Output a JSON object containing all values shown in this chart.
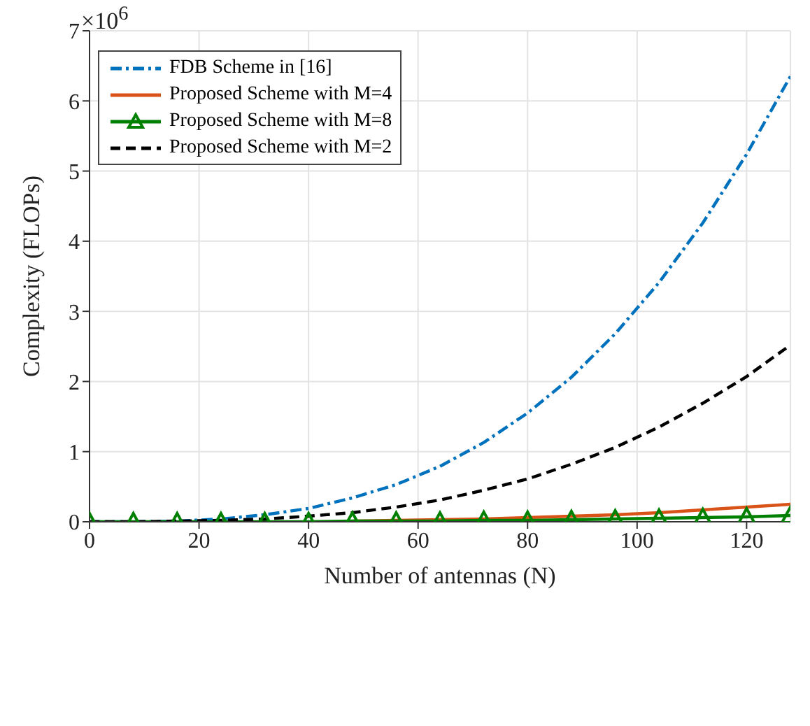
{
  "chart_data": {
    "type": "line",
    "xlabel": "Number of antennas (N)",
    "ylabel": "Complexity (FLOPs)",
    "annotations": [
      "×10$^{6}$"
    ],
    "x": [
      0,
      8,
      16,
      24,
      32,
      40,
      48,
      56,
      64,
      72,
      80,
      88,
      96,
      104,
      112,
      120,
      128
    ],
    "series": [
      {
        "name": "FDB Scheme in [16]",
        "color": "#0072bd",
        "line_style": "dashdot",
        "marker": "none",
        "values": [
          0,
          0.0,
          0.01,
          0.04,
          0.1,
          0.19,
          0.34,
          0.53,
          0.79,
          1.13,
          1.55,
          2.06,
          2.68,
          3.41,
          4.26,
          5.24,
          6.35
        ]
      },
      {
        "name": "Proposed Scheme with M=4",
        "color": "#d95319",
        "line_style": "solid",
        "marker": "none",
        "values": [
          null,
          null,
          null,
          null,
          null,
          null,
          0.01,
          0.02,
          0.03,
          0.04,
          0.06,
          0.08,
          0.1,
          0.13,
          0.17,
          0.21,
          0.25
        ]
      },
      {
        "name": "Proposed Scheme with M=8",
        "color": "#008000",
        "line_style": "solid",
        "marker": "triangle",
        "values": [
          0,
          0,
          0,
          0,
          0,
          0,
          0.01,
          0.01,
          0.01,
          0.02,
          0.02,
          0.03,
          0.04,
          0.05,
          0.06,
          0.07,
          0.09
        ]
      },
      {
        "name": "Proposed Scheme with M=2",
        "color": "#000000",
        "line_style": "dashed",
        "marker": "none",
        "values": [
          0,
          0,
          0.01,
          0.02,
          0.04,
          0.08,
          0.13,
          0.21,
          0.31,
          0.45,
          0.61,
          0.82,
          1.06,
          1.35,
          1.69,
          2.07,
          2.52
        ]
      }
    ],
    "xlim": [
      0,
      128
    ],
    "xticks": [
      0,
      20,
      40,
      60,
      80,
      100,
      120
    ],
    "ylim": [
      0,
      7
    ],
    "yticks": [
      0,
      1,
      2,
      3,
      4,
      5,
      6,
      7
    ],
    "grid": true,
    "legend": "top left"
  }
}
